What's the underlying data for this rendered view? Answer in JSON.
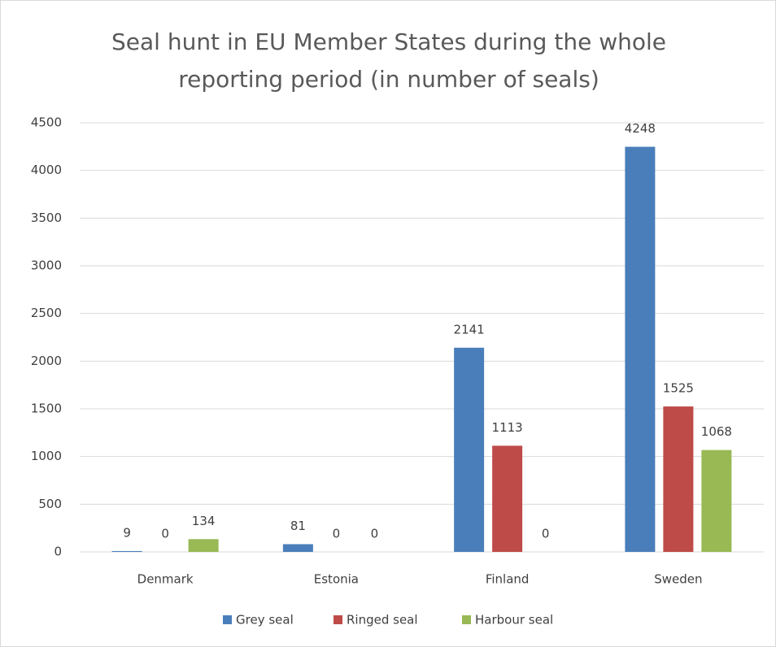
{
  "chart_data": {
    "type": "bar",
    "title": "Seal hunt in EU Member States during the whole reporting period (in number of seals)",
    "categories": [
      "Denmark",
      "Estonia",
      "Finland",
      "Sweden"
    ],
    "series": [
      {
        "name": "Grey seal",
        "color": "#4a7ebb",
        "values": [
          9,
          81,
          2141,
          4248
        ]
      },
      {
        "name": "Ringed seal",
        "color": "#be4b48",
        "values": [
          0,
          0,
          1113,
          1525
        ]
      },
      {
        "name": "Harbour seal",
        "color": "#98b954",
        "values": [
          134,
          0,
          0,
          1068
        ]
      }
    ],
    "ylim": [
      0,
      4500
    ],
    "yticks": [
      0,
      500,
      1000,
      1500,
      2000,
      2500,
      3000,
      3500,
      4000,
      4500
    ],
    "grid": true,
    "legend": "bottom"
  }
}
